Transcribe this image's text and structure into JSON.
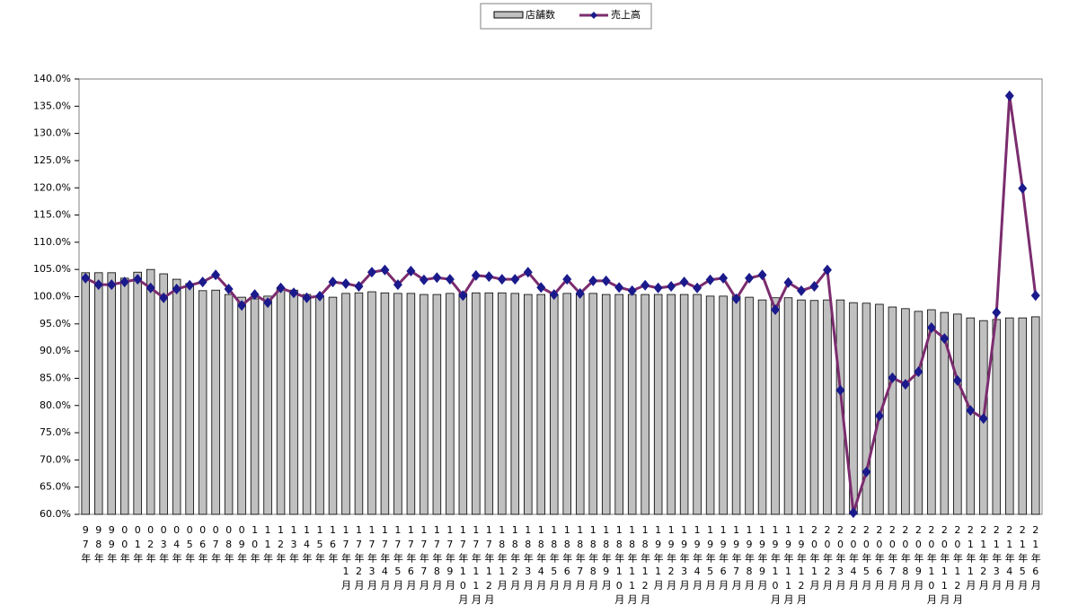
{
  "chart_data": {
    "type": "bar",
    "categories": [
      "97年",
      "98年",
      "99年",
      "00年",
      "01年",
      "02年",
      "03年",
      "04年",
      "05年",
      "06年",
      "07年",
      "08年",
      "09年",
      "10年",
      "11年",
      "12年",
      "13年",
      "14年",
      "15年",
      "16年",
      "17年1月",
      "17年2月",
      "17年3月",
      "17年4月",
      "17年5月",
      "17年6月",
      "17年7月",
      "17年8月",
      "17年9月",
      "17年10月",
      "17年11月",
      "17年12月",
      "18年1月",
      "18年2月",
      "18年3月",
      "18年4月",
      "18年5月",
      "18年6月",
      "18年7月",
      "18年8月",
      "18年9月",
      "18年10月",
      "18年11月",
      "18年12月",
      "19年1月",
      "19年2月",
      "19年3月",
      "19年4月",
      "19年5月",
      "19年6月",
      "19年7月",
      "19年8月",
      "19年9月",
      "19年10月",
      "19年11月",
      "19年12月",
      "20年1月",
      "20年2月",
      "20年3月",
      "20年4月",
      "20年5月",
      "20年6月",
      "20年7月",
      "20年8月",
      "20年9月",
      "20年10月",
      "20年11月",
      "20年12月",
      "21年1月",
      "21年2月",
      "21年3月",
      "21年4月",
      "21年5月",
      "21年6月"
    ],
    "series": [
      {
        "name": "店舗数",
        "type": "bar",
        "color": "#c0c0c0",
        "values": [
          104.4,
          104.4,
          104.4,
          103.4,
          104.5,
          105.0,
          104.2,
          103.2,
          102.4,
          101.1,
          101.2,
          100.4,
          99.9,
          99.6,
          100.1,
          101.6,
          101.2,
          100.4,
          100.2,
          99.9,
          100.6,
          100.7,
          100.9,
          100.7,
          100.6,
          100.6,
          100.4,
          100.4,
          100.6,
          100.6,
          100.7,
          100.7,
          100.7,
          100.6,
          100.4,
          100.4,
          100.4,
          100.6,
          100.6,
          100.6,
          100.4,
          100.4,
          100.4,
          100.4,
          100.4,
          100.4,
          100.4,
          100.4,
          100.1,
          100.1,
          100.1,
          99.9,
          99.4,
          99.8,
          99.8,
          99.4,
          99.3,
          99.4,
          99.4,
          98.9,
          98.8,
          98.6,
          98.1,
          97.8,
          97.3,
          97.6,
          97.1,
          96.8,
          96.1,
          95.6,
          95.8,
          96.1,
          96.1,
          96.3
        ]
      },
      {
        "name": "売上高",
        "type": "line",
        "color": "#7b2c6e",
        "marker_color": "#1a1a8c",
        "values": [
          103.4,
          102.2,
          102.2,
          102.7,
          103.2,
          101.6,
          99.8,
          101.4,
          102.1,
          102.7,
          104.0,
          101.4,
          98.4,
          100.4,
          98.9,
          101.6,
          100.7,
          99.8,
          100.1,
          102.7,
          102.4,
          101.9,
          104.5,
          104.9,
          102.2,
          104.7,
          103.1,
          103.5,
          103.2,
          100.2,
          103.9,
          103.7,
          103.2,
          103.2,
          104.5,
          101.7,
          100.4,
          103.2,
          100.6,
          102.9,
          102.9,
          101.7,
          101.1,
          102.1,
          101.6,
          101.9,
          102.7,
          101.6,
          103.1,
          103.4,
          99.6,
          103.4,
          104.0,
          97.6,
          102.6,
          101.1,
          101.9,
          104.9,
          82.8,
          60.3,
          67.8,
          78.1,
          85.1,
          83.9,
          86.2,
          94.3,
          92.3,
          84.6,
          79.1,
          77.6,
          97.1,
          136.9,
          119.9,
          100.2
        ]
      }
    ],
    "ylim": [
      60,
      140
    ],
    "yticks": [
      {
        "value": 60,
        "label": "60.0%"
      },
      {
        "value": 65,
        "label": "65.0%"
      },
      {
        "value": 70,
        "label": "70.0%"
      },
      {
        "value": 75,
        "label": "75.0%"
      },
      {
        "value": 80,
        "label": "80.0%"
      },
      {
        "value": 85,
        "label": "85.0%"
      },
      {
        "value": 90,
        "label": "90.0%"
      },
      {
        "value": 95,
        "label": "95.0%"
      },
      {
        "value": 100,
        "label": "100.0%"
      },
      {
        "value": 105,
        "label": "105.0%"
      },
      {
        "value": 110,
        "label": "110.0%"
      },
      {
        "value": 115,
        "label": "115.0%"
      },
      {
        "value": 120,
        "label": "120.0%"
      },
      {
        "value": 125,
        "label": "125.0%"
      },
      {
        "value": 130,
        "label": "130.0%"
      },
      {
        "value": 135,
        "label": "135.0%"
      },
      {
        "value": 140,
        "label": "140.0%"
      }
    ],
    "grid": false,
    "legend": "top"
  }
}
